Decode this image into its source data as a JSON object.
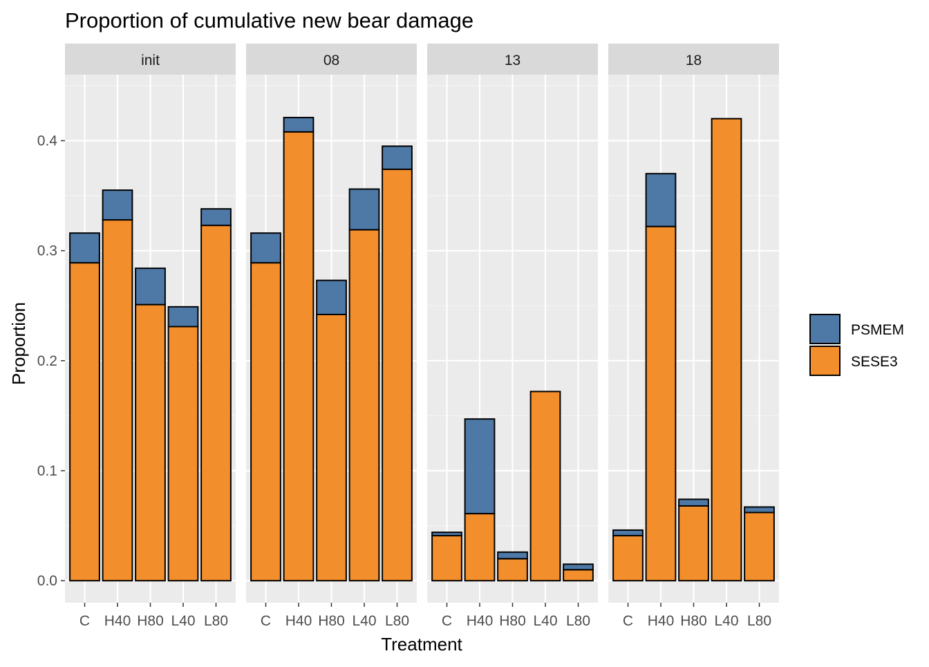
{
  "chart_data": {
    "type": "bar",
    "stacked": true,
    "faceted": true,
    "title": "Proportion of cumulative new bear damage",
    "xlabel": "Treatment",
    "ylabel": "Proportion",
    "ylim": [
      -0.02,
      0.46
    ],
    "yticks": [
      "0.0",
      "0.1",
      "0.2",
      "0.3",
      "0.4"
    ],
    "ytick_values": [
      0.0,
      0.1,
      0.2,
      0.3,
      0.4
    ],
    "grid": true,
    "legend_position": "right",
    "categories": [
      "C",
      "H40",
      "H80",
      "L40",
      "L80"
    ],
    "series_order": [
      "SESE3",
      "PSMEM"
    ],
    "legend": [
      {
        "name": "PSMEM",
        "color": "#4E79A7"
      },
      {
        "name": "SESE3",
        "color": "#F28E2B"
      }
    ],
    "panels": [
      {
        "label": "init",
        "series": [
          {
            "name": "SESE3",
            "values": [
              0.289,
              0.328,
              0.251,
              0.231,
              0.323
            ]
          },
          {
            "name": "PSMEM",
            "values": [
              0.027,
              0.027,
              0.033,
              0.018,
              0.015
            ]
          }
        ]
      },
      {
        "label": "08",
        "series": [
          {
            "name": "SESE3",
            "values": [
              0.289,
              0.408,
              0.242,
              0.319,
              0.374
            ]
          },
          {
            "name": "PSMEM",
            "values": [
              0.027,
              0.013,
              0.031,
              0.037,
              0.021
            ]
          }
        ]
      },
      {
        "label": "13",
        "series": [
          {
            "name": "SESE3",
            "values": [
              0.041,
              0.061,
              0.02,
              0.172,
              0.01
            ]
          },
          {
            "name": "PSMEM",
            "values": [
              0.003,
              0.086,
              0.006,
              0.0,
              0.005
            ]
          }
        ]
      },
      {
        "label": "18",
        "series": [
          {
            "name": "SESE3",
            "values": [
              0.041,
              0.322,
              0.068,
              0.42,
              0.062
            ]
          },
          {
            "name": "PSMEM",
            "values": [
              0.005,
              0.048,
              0.006,
              0.0,
              0.005
            ]
          }
        ]
      }
    ]
  },
  "colors": {
    "PSMEM": "#4E79A7",
    "SESE3": "#F28E2B",
    "panel_bg": "#EBEBEB",
    "strip_bg": "#D9D9D9",
    "grid_major": "#FFFFFF",
    "text_tick": "#4D4D4D",
    "text_strip": "#1A1A1A"
  }
}
